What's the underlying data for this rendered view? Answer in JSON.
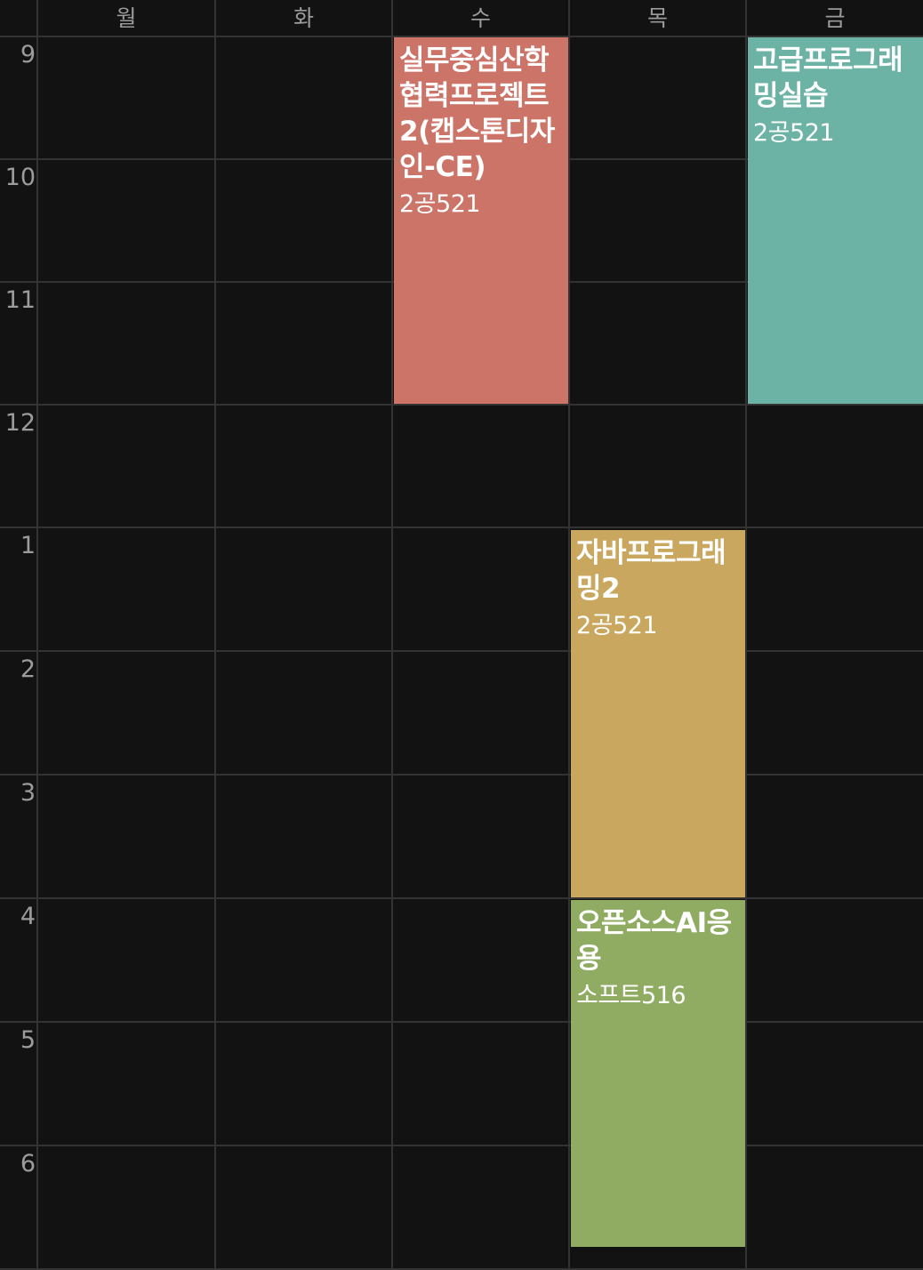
{
  "days": [
    "월",
    "화",
    "수",
    "목",
    "금"
  ],
  "hours": [
    "9",
    "10",
    "11",
    "12",
    "1",
    "2",
    "3",
    "4",
    "5",
    "6"
  ],
  "courses": [
    {
      "title": "실무중심산학협력프로젝트2(캡스톤디자인-CE)",
      "room": "2공521",
      "color": "#cc7468"
    },
    {
      "title": "고급프로그래밍실습",
      "room": "2공521",
      "color": "#6cb3a6"
    },
    {
      "title": "자바프로그래밍2",
      "room": "2공521",
      "color": "#caa75e"
    },
    {
      "title": "오픈소스AI응용",
      "room": "소프트516",
      "color": "#90ac63"
    }
  ]
}
